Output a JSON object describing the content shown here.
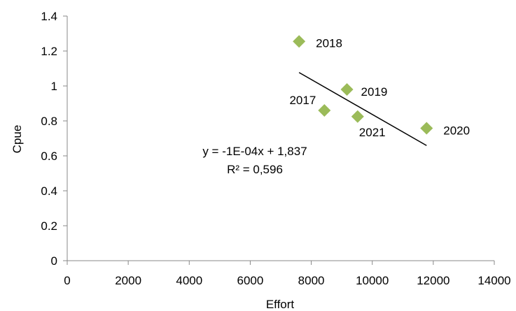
{
  "chart_data": {
    "type": "scatter",
    "title": "",
    "xlabel": "Effort",
    "ylabel": "Cpue",
    "xlim": [
      0,
      14000
    ],
    "ylim": [
      0,
      1.4
    ],
    "xticks": [
      0,
      2000,
      4000,
      6000,
      8000,
      10000,
      12000,
      14000
    ],
    "yticks": [
      0,
      0.2,
      0.4,
      0.6,
      0.8,
      1,
      1.2,
      1.4
    ],
    "xtick_labels": [
      "0",
      "2000",
      "4000",
      "6000",
      "8000",
      "10000",
      "12000",
      "14000"
    ],
    "ytick_labels": [
      "0",
      "0.2",
      "0.4",
      "0.6",
      "0.8",
      "1",
      "1.2",
      "1.4"
    ],
    "grid": false,
    "marker_color": "#9BBB59",
    "trendline_color": "#000000",
    "points": [
      {
        "label": "2017",
        "x": 8430,
        "y": 0.86
      },
      {
        "label": "2018",
        "x": 7600,
        "y": 1.255
      },
      {
        "label": "2019",
        "x": 9170,
        "y": 0.98
      },
      {
        "label": "2020",
        "x": 11780,
        "y": 0.758
      },
      {
        "label": "2021",
        "x": 9520,
        "y": 0.825
      }
    ],
    "trendline": {
      "x_start": 7600,
      "x_end": 11780,
      "equation": "y = -1E-04x + 1,837",
      "r_squared": "R² = 0,596"
    }
  }
}
